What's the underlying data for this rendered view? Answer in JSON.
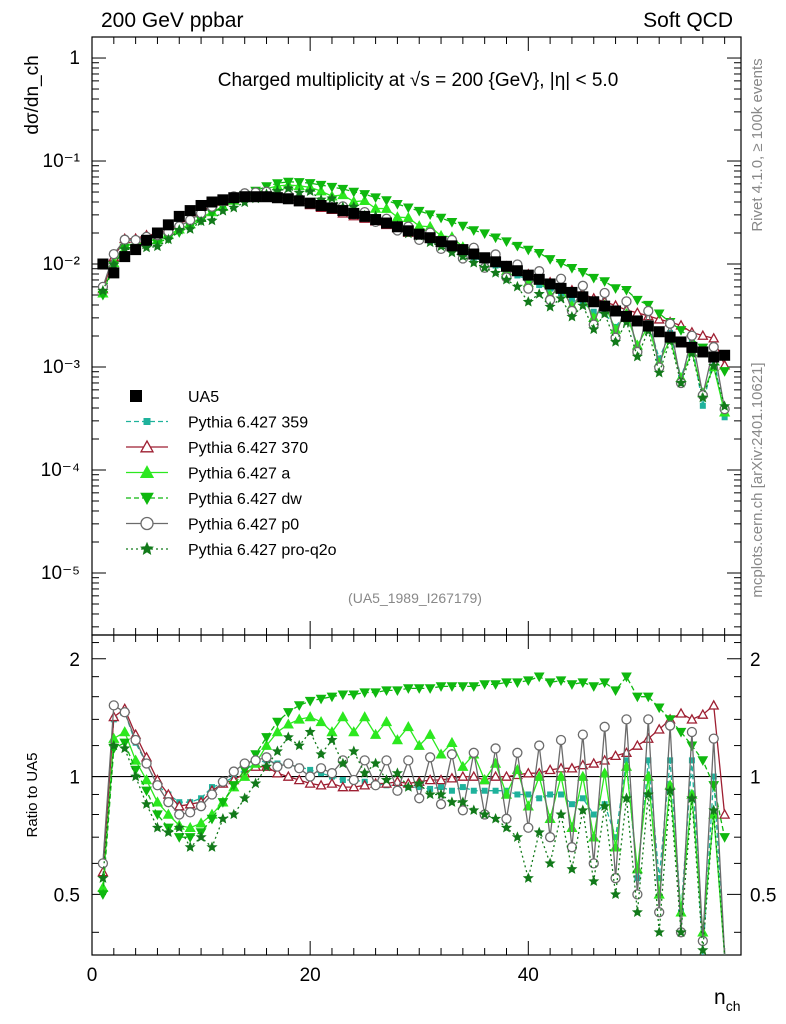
{
  "header": {
    "left": "200 GeV ppbar",
    "right": "Soft QCD"
  },
  "side": {
    "rivet": "Rivet 4.1.0, ≥ 100k events",
    "mcplots": "mcplots.cern.ch [arXiv:2401.10621]"
  },
  "chart_data": {
    "type": "scatter",
    "title": "Charged multiplicity at √s = 200 {GeV}, |η| < 5.0",
    "analysis_id": "(UA5_1989_I267179)",
    "xlabel_main": "n",
    "xlabel_sub": "ch",
    "ylabel": "dσ/dn_ch",
    "ratio_ylabel": "Ratio to UA5",
    "xlim": [
      0,
      59.5
    ],
    "ylim_main": [
      2.5e-06,
      1.6
    ],
    "ylim_ratio": [
      0.35,
      2.3
    ],
    "x_ticks": [
      "0",
      "20",
      "40"
    ],
    "y_ticks_main": [
      "1",
      "10⁻¹",
      "10⁻²",
      "10⁻³",
      "10⁻⁴",
      "10⁻⁵"
    ],
    "y_ticks_ratio": [
      "2",
      "1",
      "0.5"
    ],
    "x": [
      1,
      2,
      3,
      4,
      5,
      6,
      7,
      8,
      9,
      10,
      11,
      12,
      13,
      14,
      15,
      16,
      17,
      18,
      19,
      20,
      21,
      22,
      23,
      24,
      25,
      26,
      27,
      28,
      29,
      30,
      31,
      32,
      33,
      34,
      35,
      36,
      37,
      38,
      39,
      40,
      41,
      42,
      43,
      44,
      45,
      46,
      47,
      48,
      49,
      50,
      51,
      52,
      53,
      54,
      55,
      56,
      57,
      58
    ],
    "data_series": {
      "name": "UA5",
      "values": [
        0.01,
        0.0082,
        0.0118,
        0.0138,
        0.017,
        0.02,
        0.024,
        0.029,
        0.033,
        0.037,
        0.04,
        0.042,
        0.044,
        0.045,
        0.045,
        0.045,
        0.044,
        0.043,
        0.041,
        0.039,
        0.037,
        0.035,
        0.033,
        0.031,
        0.029,
        0.027,
        0.025,
        0.023,
        0.021,
        0.0195,
        0.018,
        0.0165,
        0.015,
        0.0138,
        0.0125,
        0.0115,
        0.0105,
        0.0095,
        0.0086,
        0.0078,
        0.0071,
        0.0064,
        0.0058,
        0.0053,
        0.0048,
        0.0043,
        0.0039,
        0.0035,
        0.0031,
        0.0028,
        0.0025,
        0.0022,
        0.00195,
        0.00175,
        0.00155,
        0.0014,
        0.00125,
        0.0013
      ]
    },
    "series": [
      {
        "name": "Pythia 6.427 359",
        "color": "#1fb29c",
        "marker": "square",
        "dash": "5,3",
        "ratio": [
          0.6,
          1.4,
          1.46,
          1.22,
          1.08,
          0.95,
          0.9,
          0.86,
          0.86,
          0.88,
          0.94,
          0.96,
          1.0,
          1.04,
          1.08,
          1.1,
          1.08,
          1.07,
          1.06,
          1.04,
          1.02,
          1.0,
          0.98,
          0.98,
          0.97,
          0.96,
          0.95,
          0.95,
          0.94,
          0.94,
          0.93,
          0.94,
          0.92,
          0.94,
          0.92,
          0.92,
          0.92,
          0.92,
          0.9,
          0.9,
          0.88,
          0.9,
          0.9,
          0.85,
          0.88,
          0.8,
          0.85,
          0.7,
          1.1,
          0.55,
          1.1,
          0.55,
          1.1,
          0.45,
          1.1,
          0.3,
          1.0,
          0.25
        ]
      },
      {
        "name": "Pythia 6.427 370",
        "color": "#9e1f32",
        "marker": "triangle-open",
        "dash": "",
        "ratio": [
          0.57,
          1.42,
          1.49,
          1.28,
          1.12,
          0.98,
          0.9,
          0.84,
          0.85,
          0.86,
          0.92,
          0.96,
          0.98,
          1.02,
          1.06,
          1.06,
          1.02,
          1.0,
          0.98,
          0.96,
          0.95,
          0.96,
          0.94,
          0.94,
          0.95,
          0.96,
          0.96,
          0.97,
          0.96,
          0.97,
          0.98,
          0.98,
          0.99,
          1.0,
          1.0,
          0.98,
          1.0,
          1.0,
          1.01,
          1.02,
          1.02,
          1.04,
          1.05,
          1.05,
          1.07,
          1.08,
          1.1,
          1.13,
          1.15,
          1.2,
          1.25,
          1.32,
          1.4,
          1.45,
          1.4,
          1.44,
          1.52,
          0.8
        ]
      },
      {
        "name": "Pythia 6.427 a",
        "color": "#2ce81f",
        "marker": "triangle",
        "dash": "",
        "ratio": [
          0.52,
          1.25,
          1.3,
          1.1,
          0.98,
          0.86,
          0.8,
          0.75,
          0.74,
          0.76,
          0.8,
          0.86,
          0.94,
          1.0,
          1.08,
          1.2,
          1.3,
          1.36,
          1.4,
          1.42,
          1.38,
          1.3,
          1.42,
          1.3,
          1.42,
          1.28,
          1.38,
          1.24,
          1.34,
          1.2,
          1.28,
          1.14,
          1.22,
          1.06,
          1.14,
          0.98,
          1.08,
          0.9,
          1.04,
          0.84,
          1.0,
          0.78,
          1.0,
          0.74,
          1.0,
          0.7,
          1.02,
          0.66,
          1.06,
          0.58,
          1.0,
          0.5,
          0.95,
          0.45,
          0.9,
          0.4,
          0.8,
          0.28
        ]
      },
      {
        "name": "Pythia 6.427 dw",
        "color": "#0fb80f",
        "marker": "triangle-down",
        "dash": "5,3",
        "ratio": [
          0.5,
          1.18,
          1.22,
          1.04,
          0.92,
          0.8,
          0.74,
          0.7,
          0.7,
          0.72,
          0.78,
          0.86,
          0.95,
          1.04,
          1.14,
          1.26,
          1.38,
          1.46,
          1.52,
          1.56,
          1.58,
          1.6,
          1.62,
          1.62,
          1.64,
          1.64,
          1.66,
          1.66,
          1.68,
          1.68,
          1.68,
          1.7,
          1.7,
          1.7,
          1.7,
          1.72,
          1.72,
          1.74,
          1.74,
          1.76,
          1.8,
          1.74,
          1.76,
          1.72,
          1.74,
          1.7,
          1.74,
          1.66,
          1.8,
          1.6,
          1.6,
          1.5,
          1.4,
          1.3,
          1.2,
          1.1,
          0.95,
          0.7
        ]
      },
      {
        "name": "Pythia 6.427 p0",
        "color": "#6b6b6b",
        "marker": "circle-open",
        "dash": "",
        "ratio": [
          0.6,
          1.52,
          1.46,
          1.24,
          1.08,
          0.95,
          0.86,
          0.8,
          0.81,
          0.84,
          0.9,
          0.97,
          1.03,
          1.08,
          1.1,
          1.12,
          1.06,
          1.08,
          1.05,
          1.0,
          1.05,
          1.02,
          1.1,
          0.98,
          1.1,
          0.95,
          1.1,
          0.92,
          1.1,
          0.88,
          1.12,
          0.85,
          1.14,
          0.82,
          1.15,
          0.8,
          1.18,
          0.78,
          1.15,
          0.74,
          1.2,
          0.7,
          1.24,
          0.66,
          1.28,
          0.6,
          1.34,
          0.55,
          1.4,
          0.5,
          1.4,
          0.45,
          1.35,
          0.4,
          1.3,
          0.38,
          1.25,
          0.3
        ]
      },
      {
        "name": "Pythia 6.427 pro-q2o",
        "color": "#127a1a",
        "marker": "star",
        "dash": "2,3",
        "ratio": [
          0.55,
          1.2,
          1.18,
          1.0,
          0.85,
          0.74,
          0.72,
          0.74,
          0.66,
          0.7,
          0.66,
          0.78,
          0.8,
          0.88,
          0.96,
          1.06,
          1.16,
          1.26,
          1.2,
          1.3,
          1.14,
          1.24,
          1.08,
          1.16,
          1.02,
          1.08,
          0.98,
          1.02,
          0.94,
          0.96,
          0.9,
          0.9,
          0.86,
          0.86,
          0.82,
          0.8,
          0.78,
          0.74,
          0.7,
          0.55,
          0.72,
          0.6,
          0.8,
          0.58,
          0.82,
          0.54,
          0.84,
          0.5,
          0.88,
          0.45,
          0.9,
          0.4,
          0.92,
          0.4,
          0.88,
          0.36,
          0.82,
          0.32
        ]
      }
    ]
  }
}
